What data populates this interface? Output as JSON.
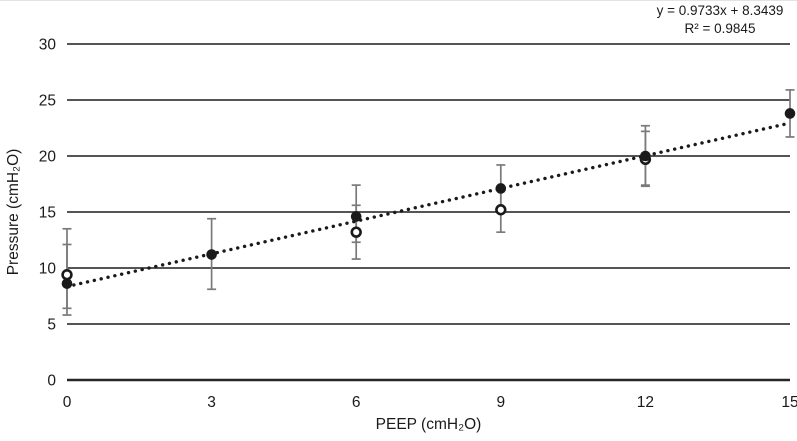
{
  "chart_data": {
    "type": "scatter",
    "title": "",
    "xlabel": "PEEP (cmH₂O)",
    "ylabel": "Pressure (cmH₂O)",
    "xlim": [
      0,
      15
    ],
    "ylim": [
      0,
      30
    ],
    "xticks": [
      0,
      3,
      6,
      9,
      12,
      15
    ],
    "yticks": [
      0,
      5,
      10,
      15,
      20,
      25,
      30
    ],
    "grid": "horizontal-only",
    "legend": "none",
    "trendline": {
      "slope": 0.9733,
      "intercept": 8.3439,
      "style": "dotted",
      "equation_line1": "y = 0.9733x + 8.3439",
      "equation_line2": "R² = 0.9845"
    },
    "series": [
      {
        "name": "open-circle-series",
        "marker": "open-circle",
        "points": [
          {
            "x": 0,
            "y": 9.4,
            "err_low": 5.8,
            "err_high": 13.5
          },
          {
            "x": 6,
            "y": 13.2,
            "err_low": 10.8,
            "err_high": 15.6
          },
          {
            "x": 9,
            "y": 15.2,
            "err_low": 13.2,
            "err_high": 17.2
          },
          {
            "x": 12,
            "y": 19.7,
            "err_low": 17.3,
            "err_high": 22.2
          }
        ]
      },
      {
        "name": "filled-circle-series",
        "marker": "filled-circle",
        "points": [
          {
            "x": 0,
            "y": 8.6,
            "err_low": 6.4,
            "err_high": 12.1
          },
          {
            "x": 3,
            "y": 11.2,
            "err_low": 8.1,
            "err_high": 14.4
          },
          {
            "x": 6,
            "y": 14.6,
            "err_low": 12.3,
            "err_high": 17.4
          },
          {
            "x": 9,
            "y": 17.1,
            "err_low": 15.0,
            "err_high": 19.2
          },
          {
            "x": 12,
            "y": 20.0,
            "err_low": 17.4,
            "err_high": 22.7
          },
          {
            "x": 15,
            "y": 23.8,
            "err_low": 21.7,
            "err_high": 25.9
          }
        ]
      }
    ],
    "colors": {
      "marker": "#1a1a1a",
      "marker_open_fill": "#ffffff",
      "error_bar": "#7a7a7a",
      "gridline": "#3d3d3d",
      "axis_line": "#262626",
      "trendline": "#1a1a1a",
      "text": "#1a1a1a",
      "background": "#ffffff"
    }
  }
}
